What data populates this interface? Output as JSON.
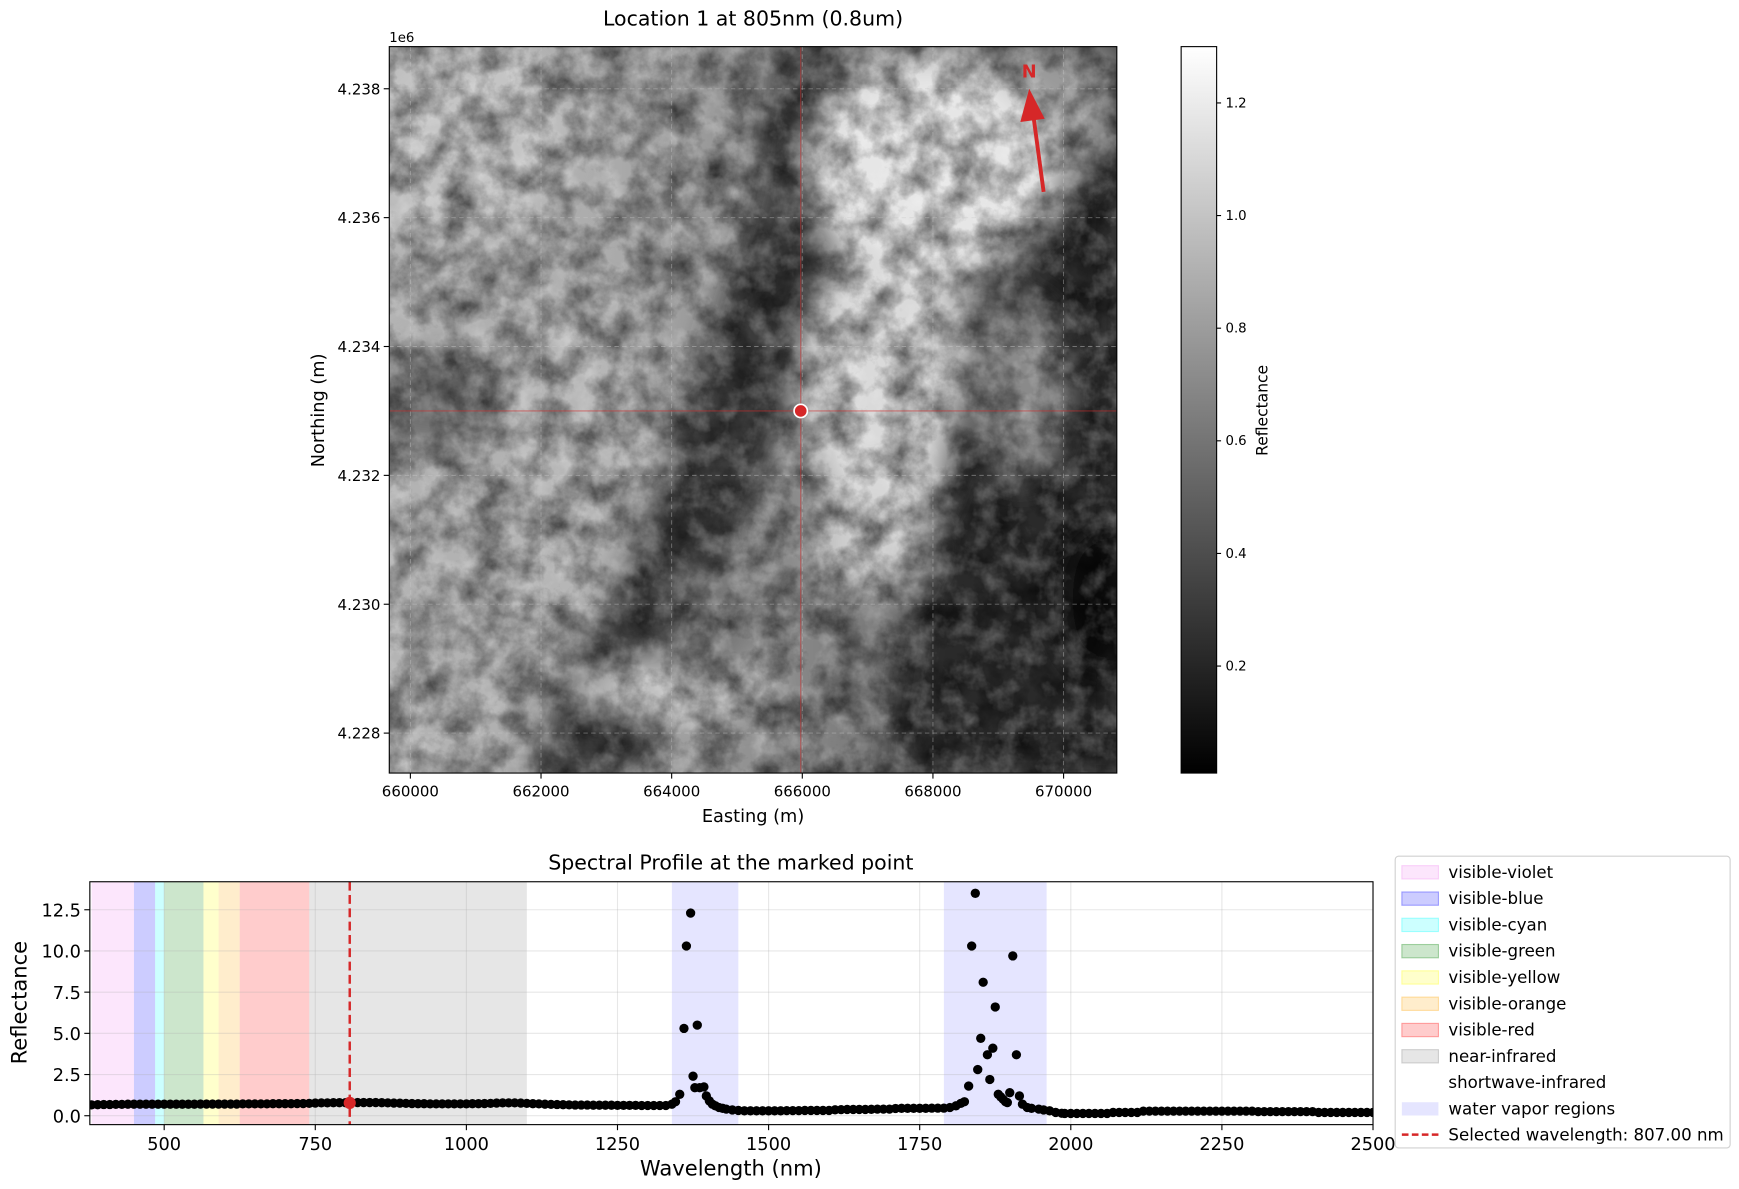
{
  "chart_data": [
    {
      "type": "heatmap",
      "title": "Location 1 at 805nm (0.8um)",
      "xlabel": "Easting (m)",
      "ylabel": "Northing (m)",
      "xlim": [
        659677,
        670815
      ],
      "ylim": [
        4227380,
        4238654
      ],
      "x_ticks": [
        660000,
        662000,
        664000,
        666000,
        668000,
        670000
      ],
      "x_tick_labels": [
        "660000",
        "662000",
        "664000",
        "666000",
        "668000",
        "670000"
      ],
      "y_ticks": [
        4228000,
        4230000,
        4232000,
        4234000,
        4236000,
        4238000
      ],
      "y_tick_labels": [
        "4.228",
        "4.230",
        "4.232",
        "4.234",
        "4.236",
        "4.238"
      ],
      "y_offset_label": "1e6",
      "colormap": "gray",
      "grid": true,
      "marked_point": {
        "easting": 665976,
        "northing": 4233000,
        "color": "#d62728"
      },
      "north_arrow": {
        "label": "N",
        "color": "#d62728"
      },
      "colorbar": {
        "label": "Reflectance",
        "range": [
          0.01,
          1.3
        ],
        "ticks": [
          0.2,
          0.4,
          0.6,
          0.8,
          1.0,
          1.2
        ],
        "tick_labels": [
          "0.2",
          "0.4",
          "0.6",
          "0.8",
          "1.0",
          "1.2"
        ]
      }
    },
    {
      "type": "scatter",
      "title": "Spectral Profile at the marked point",
      "xlabel": "Wavelength (nm)",
      "ylabel": "Reflectance",
      "xlim": [
        377,
        2500
      ],
      "ylim": [
        -0.54,
        14.2
      ],
      "x_ticks": [
        500,
        750,
        1000,
        1250,
        1500,
        1750,
        2000,
        2250,
        2500
      ],
      "x_tick_labels": [
        "500",
        "750",
        "1000",
        "1250",
        "1500",
        "1750",
        "2000",
        "2250",
        "2500"
      ],
      "y_ticks": [
        0,
        2.5,
        5,
        7.5,
        10,
        12.5
      ],
      "y_tick_labels": [
        "0.0",
        "2.5",
        "5.0",
        "7.5",
        "10.0",
        "12.5"
      ],
      "grid": true,
      "legend_position": "outside-right",
      "bands": [
        {
          "name": "visible-violet",
          "range": [
            380,
            450
          ],
          "color": "#ee82ee",
          "alpha": 0.2
        },
        {
          "name": "visible-blue",
          "range": [
            450,
            485
          ],
          "color": "#0000ff",
          "alpha": 0.2
        },
        {
          "name": "visible-cyan",
          "range": [
            485,
            500
          ],
          "color": "#00ffff",
          "alpha": 0.2
        },
        {
          "name": "visible-green",
          "range": [
            500,
            565
          ],
          "color": "#008000",
          "alpha": 0.2
        },
        {
          "name": "visible-yellow",
          "range": [
            565,
            590
          ],
          "color": "#ffff00",
          "alpha": 0.2
        },
        {
          "name": "visible-orange",
          "range": [
            590,
            625
          ],
          "color": "#ffa500",
          "alpha": 0.2
        },
        {
          "name": "visible-red",
          "range": [
            625,
            740
          ],
          "color": "#ff0000",
          "alpha": 0.2
        },
        {
          "name": "near-infrared",
          "range": [
            740,
            1100
          ],
          "color": "#808080",
          "alpha": 0.2
        },
        {
          "name": "shortwave-infrared",
          "range": [
            1100,
            2500
          ],
          "color": "#ffffff",
          "alpha": 0.0
        }
      ],
      "water_vapor": {
        "name": "water vapor regions",
        "ranges": [
          [
            1340,
            1450
          ],
          [
            1790,
            1960
          ]
        ],
        "color": "#0000ff",
        "alpha": 0.1
      },
      "selected": {
        "label": "Selected wavelength: 807.00 nm",
        "wavelength": 807,
        "reflectance": 0.78,
        "color": "#d62728"
      },
      "points": [
        [
          380,
          0.66
        ],
        [
          390,
          0.67
        ],
        [
          400,
          0.68
        ],
        [
          410,
          0.68
        ],
        [
          420,
          0.69
        ],
        [
          430,
          0.69
        ],
        [
          440,
          0.7
        ],
        [
          450,
          0.7
        ],
        [
          460,
          0.7
        ],
        [
          470,
          0.7
        ],
        [
          480,
          0.7
        ],
        [
          490,
          0.7
        ],
        [
          500,
          0.7
        ],
        [
          510,
          0.7
        ],
        [
          520,
          0.7
        ],
        [
          530,
          0.7
        ],
        [
          540,
          0.7
        ],
        [
          550,
          0.7
        ],
        [
          560,
          0.71
        ],
        [
          570,
          0.71
        ],
        [
          580,
          0.71
        ],
        [
          590,
          0.71
        ],
        [
          600,
          0.71
        ],
        [
          610,
          0.71
        ],
        [
          620,
          0.71
        ],
        [
          630,
          0.72
        ],
        [
          640,
          0.72
        ],
        [
          650,
          0.72
        ],
        [
          660,
          0.72
        ],
        [
          670,
          0.72
        ],
        [
          680,
          0.73
        ],
        [
          690,
          0.73
        ],
        [
          700,
          0.73
        ],
        [
          710,
          0.73
        ],
        [
          720,
          0.74
        ],
        [
          730,
          0.74
        ],
        [
          740,
          0.75
        ],
        [
          750,
          0.77
        ],
        [
          760,
          0.78
        ],
        [
          770,
          0.78
        ],
        [
          780,
          0.79
        ],
        [
          790,
          0.79
        ],
        [
          800,
          0.79
        ],
        [
          810,
          0.8
        ],
        [
          820,
          0.8
        ],
        [
          830,
          0.8
        ],
        [
          840,
          0.8
        ],
        [
          850,
          0.8
        ],
        [
          860,
          0.79
        ],
        [
          870,
          0.78
        ],
        [
          880,
          0.77
        ],
        [
          890,
          0.76
        ],
        [
          900,
          0.75
        ],
        [
          910,
          0.74
        ],
        [
          920,
          0.73
        ],
        [
          930,
          0.73
        ],
        [
          940,
          0.72
        ],
        [
          950,
          0.72
        ],
        [
          960,
          0.72
        ],
        [
          970,
          0.72
        ],
        [
          980,
          0.72
        ],
        [
          990,
          0.72
        ],
        [
          1000,
          0.72
        ],
        [
          1010,
          0.73
        ],
        [
          1020,
          0.73
        ],
        [
          1030,
          0.74
        ],
        [
          1040,
          0.75
        ],
        [
          1050,
          0.77
        ],
        [
          1060,
          0.78
        ],
        [
          1070,
          0.78
        ],
        [
          1080,
          0.78
        ],
        [
          1090,
          0.77
        ],
        [
          1100,
          0.75
        ],
        [
          1110,
          0.73
        ],
        [
          1120,
          0.72
        ],
        [
          1130,
          0.7
        ],
        [
          1140,
          0.69
        ],
        [
          1150,
          0.68
        ],
        [
          1160,
          0.67
        ],
        [
          1170,
          0.66
        ],
        [
          1180,
          0.65
        ],
        [
          1190,
          0.65
        ],
        [
          1200,
          0.65
        ],
        [
          1210,
          0.64
        ],
        [
          1220,
          0.64
        ],
        [
          1230,
          0.64
        ],
        [
          1240,
          0.64
        ],
        [
          1250,
          0.63
        ],
        [
          1260,
          0.63
        ],
        [
          1270,
          0.63
        ],
        [
          1280,
          0.63
        ],
        [
          1290,
          0.62
        ],
        [
          1300,
          0.62
        ],
        [
          1310,
          0.62
        ],
        [
          1320,
          0.62
        ],
        [
          1330,
          0.62
        ],
        [
          1340,
          0.7
        ],
        [
          1346,
          0.85
        ],
        [
          1353,
          1.3
        ],
        [
          1360,
          5.3
        ],
        [
          1364,
          10.3
        ],
        [
          1371,
          12.3
        ],
        [
          1375,
          2.4
        ],
        [
          1378,
          1.7
        ],
        [
          1382,
          5.5
        ],
        [
          1386,
          1.7
        ],
        [
          1393,
          1.75
        ],
        [
          1397,
          1.2
        ],
        [
          1402,
          0.9
        ],
        [
          1407,
          0.7
        ],
        [
          1412,
          0.6
        ],
        [
          1418,
          0.5
        ],
        [
          1424,
          0.45
        ],
        [
          1430,
          0.4
        ],
        [
          1440,
          0.35
        ],
        [
          1450,
          0.32
        ],
        [
          1460,
          0.3
        ],
        [
          1470,
          0.3
        ],
        [
          1480,
          0.3
        ],
        [
          1490,
          0.3
        ],
        [
          1500,
          0.3
        ],
        [
          1510,
          0.3
        ],
        [
          1520,
          0.3
        ],
        [
          1530,
          0.31
        ],
        [
          1540,
          0.31
        ],
        [
          1550,
          0.31
        ],
        [
          1560,
          0.32
        ],
        [
          1570,
          0.32
        ],
        [
          1580,
          0.32
        ],
        [
          1590,
          0.32
        ],
        [
          1600,
          0.32
        ],
        [
          1610,
          0.36
        ],
        [
          1620,
          0.37
        ],
        [
          1630,
          0.38
        ],
        [
          1640,
          0.38
        ],
        [
          1650,
          0.38
        ],
        [
          1660,
          0.38
        ],
        [
          1670,
          0.39
        ],
        [
          1680,
          0.4
        ],
        [
          1690,
          0.4
        ],
        [
          1700,
          0.4
        ],
        [
          1710,
          0.44
        ],
        [
          1720,
          0.45
        ],
        [
          1730,
          0.45
        ],
        [
          1740,
          0.45
        ],
        [
          1750,
          0.45
        ],
        [
          1760,
          0.45
        ],
        [
          1770,
          0.46
        ],
        [
          1780,
          0.46
        ],
        [
          1790,
          0.46
        ],
        [
          1800,
          0.5
        ],
        [
          1810,
          0.6
        ],
        [
          1818,
          0.75
        ],
        [
          1824,
          0.85
        ],
        [
          1831,
          1.8
        ],
        [
          1836,
          10.3
        ],
        [
          1842,
          13.5
        ],
        [
          1846,
          2.8
        ],
        [
          1851,
          4.7
        ],
        [
          1855,
          8.1
        ],
        [
          1862,
          3.7
        ],
        [
          1866,
          2.2
        ],
        [
          1871,
          4.1
        ],
        [
          1875,
          6.6
        ],
        [
          1880,
          1.3
        ],
        [
          1884,
          1.15
        ],
        [
          1888,
          1.0
        ],
        [
          1892,
          0.85
        ],
        [
          1895,
          0.8
        ],
        [
          1899,
          1.4
        ],
        [
          1904,
          9.7
        ],
        [
          1910,
          3.7
        ],
        [
          1915,
          1.2
        ],
        [
          1920,
          0.7
        ],
        [
          1928,
          0.5
        ],
        [
          1935,
          0.45
        ],
        [
          1947,
          0.4
        ],
        [
          1955,
          0.35
        ],
        [
          1965,
          0.3
        ],
        [
          1975,
          0.2
        ],
        [
          1985,
          0.15
        ],
        [
          1990,
          0.14
        ],
        [
          2000,
          0.14
        ],
        [
          2010,
          0.14
        ],
        [
          2020,
          0.14
        ],
        [
          2030,
          0.14
        ],
        [
          2040,
          0.14
        ],
        [
          2050,
          0.14
        ],
        [
          2060,
          0.14
        ],
        [
          2070,
          0.2
        ],
        [
          2080,
          0.2
        ],
        [
          2090,
          0.2
        ],
        [
          2100,
          0.2
        ],
        [
          2110,
          0.2
        ],
        [
          2120,
          0.28
        ],
        [
          2130,
          0.28
        ],
        [
          2140,
          0.28
        ],
        [
          2150,
          0.28
        ],
        [
          2160,
          0.28
        ],
        [
          2170,
          0.28
        ],
        [
          2180,
          0.28
        ],
        [
          2190,
          0.28
        ],
        [
          2200,
          0.28
        ],
        [
          2210,
          0.28
        ],
        [
          2220,
          0.28
        ],
        [
          2230,
          0.28
        ],
        [
          2240,
          0.28
        ],
        [
          2250,
          0.28
        ],
        [
          2260,
          0.28
        ],
        [
          2270,
          0.28
        ],
        [
          2280,
          0.28
        ],
        [
          2290,
          0.28
        ],
        [
          2300,
          0.28
        ],
        [
          2310,
          0.25
        ],
        [
          2320,
          0.25
        ],
        [
          2330,
          0.25
        ],
        [
          2340,
          0.25
        ],
        [
          2350,
          0.25
        ],
        [
          2360,
          0.25
        ],
        [
          2370,
          0.25
        ],
        [
          2380,
          0.25
        ],
        [
          2390,
          0.25
        ],
        [
          2400,
          0.25
        ],
        [
          2410,
          0.2
        ],
        [
          2420,
          0.2
        ],
        [
          2430,
          0.2
        ],
        [
          2440,
          0.2
        ],
        [
          2450,
          0.2
        ],
        [
          2460,
          0.2
        ],
        [
          2470,
          0.2
        ],
        [
          2480,
          0.2
        ],
        [
          2490,
          0.2
        ],
        [
          2500,
          0.2
        ]
      ]
    }
  ]
}
